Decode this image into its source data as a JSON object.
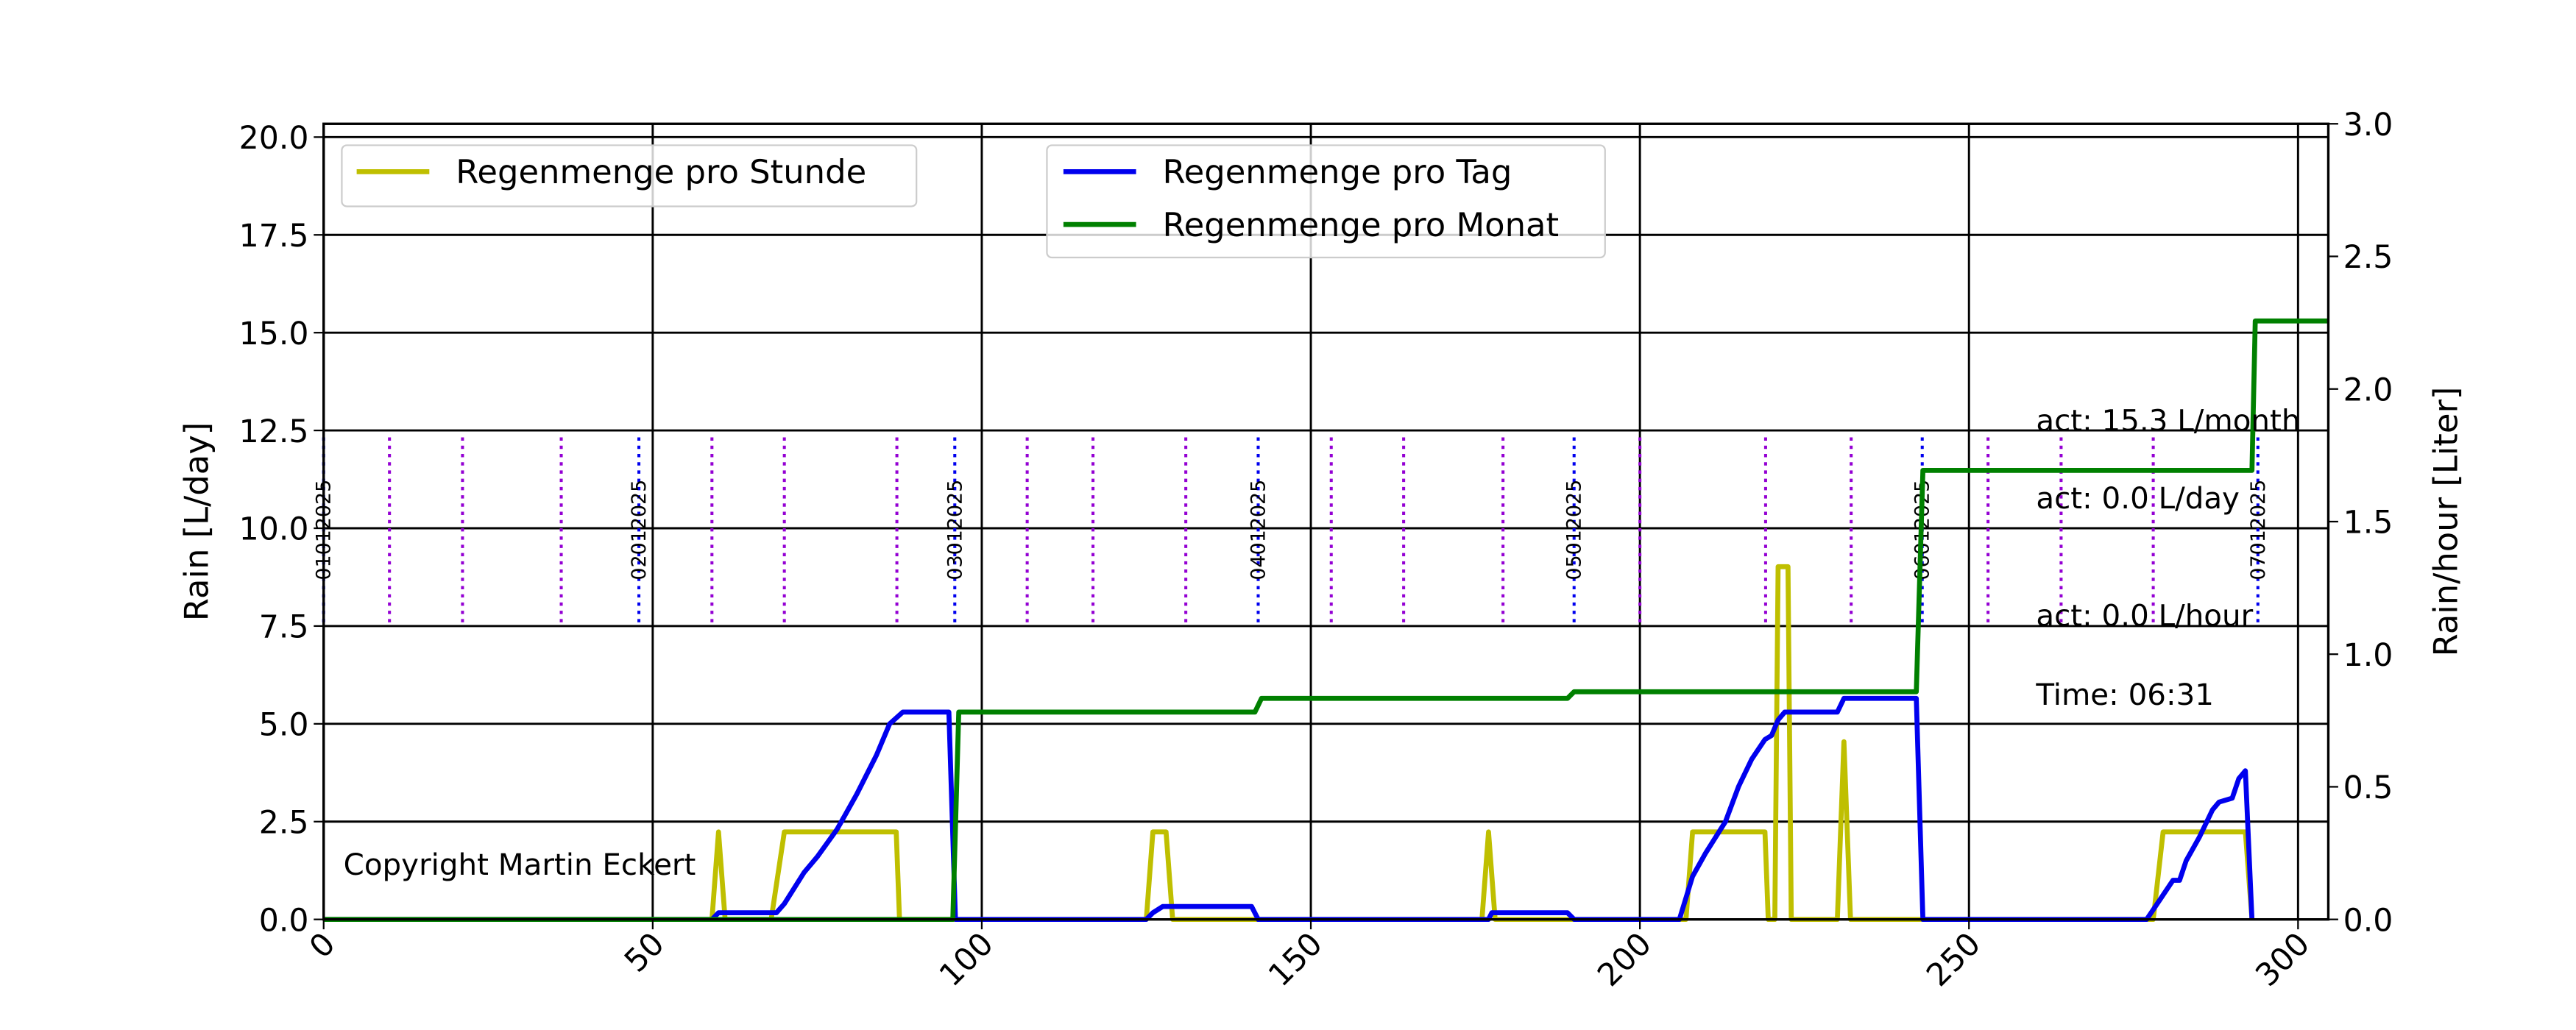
{
  "chart_data": {
    "type": "line",
    "y_label": "Rain [L/day]",
    "y2_label": "Rain/hour [Liter]",
    "xlim": [
      0,
      304.6
    ],
    "xticks": [
      0,
      50,
      100,
      150,
      200,
      250,
      300
    ],
    "ylim": [
      0,
      20.34
    ],
    "yticks": [
      {
        "value": 0,
        "label": "0.0"
      },
      2.5,
      {
        "value": 5,
        "label": "5.0"
      },
      7.5,
      {
        "value": 10,
        "label": "10.0"
      },
      12.5,
      {
        "value": 15,
        "label": "15.0"
      },
      17.5,
      {
        "value": 20,
        "label": "20.0"
      }
    ],
    "y2lim": [
      0,
      3
    ],
    "y2ticks": [
      {
        "value": 0,
        "label": "0.0"
      },
      0.5,
      {
        "value": 1,
        "label": "1.0"
      },
      1.5,
      {
        "value": 2,
        "label": "2.0"
      },
      2.5,
      {
        "value": 3,
        "label": "3.0"
      }
    ],
    "grid": true,
    "series": [
      {
        "name": "Regenmenge pro Stunde",
        "color": "#bfbf00",
        "axis": "y2",
        "x": [
          0,
          59,
          60,
          61,
          68,
          70,
          87,
          87.5,
          125,
          126,
          128,
          129,
          176,
          177,
          178,
          207,
          208,
          219,
          219.5,
          220.5,
          221,
          222.5,
          223,
          230,
          231,
          232,
          278,
          279.5,
          292,
          293
        ],
        "values": [
          0,
          0,
          0.33,
          0,
          0,
          0.33,
          0.33,
          0,
          0,
          0.33,
          0.33,
          0,
          0,
          0.33,
          0,
          0,
          0.33,
          0.33,
          0,
          0,
          1.33,
          1.33,
          0,
          0,
          0.67,
          0,
          0,
          0.33,
          0.33,
          0
        ]
      },
      {
        "name": "Regenmenge pro Tag",
        "color": "#0000ee",
        "x": [
          0,
          59,
          60,
          68.8,
          70,
          73,
          75,
          78,
          81,
          84,
          86,
          88,
          95,
          96,
          125,
          126,
          127.5,
          141,
          142,
          177,
          177.5,
          189,
          190,
          206,
          208,
          210,
          213,
          215,
          217,
          219,
          220,
          221,
          222,
          230,
          231,
          242,
          243,
          277,
          279,
          281,
          282,
          283,
          285,
          287,
          288,
          290,
          291,
          292,
          293
        ],
        "values": [
          0,
          0,
          0.17,
          0.17,
          0.4,
          1.2,
          1.6,
          2.3,
          3.2,
          4.2,
          5.0,
          5.3,
          5.3,
          0,
          0,
          0.17,
          0.33,
          0.33,
          0,
          0,
          0.17,
          0.17,
          0,
          0,
          1.1,
          1.7,
          2.5,
          3.4,
          4.1,
          4.6,
          4.7,
          5.1,
          5.3,
          5.3,
          5.65,
          5.65,
          0,
          0,
          0.5,
          1.0,
          1.0,
          1.5,
          2.1,
          2.8,
          3.0,
          3.1,
          3.6,
          3.8,
          0
        ]
      },
      {
        "name": "Regenmenge pro Monat",
        "color": "#008000",
        "x": [
          0,
          95.6,
          96.5,
          141.5,
          142.5,
          189,
          190,
          242,
          243,
          293,
          293.5,
          304.6
        ],
        "values": [
          0,
          0,
          5.3,
          5.3,
          5.65,
          5.65,
          5.82,
          5.82,
          11.48,
          11.48,
          15.3,
          15.3
        ]
      }
    ],
    "day_markers": {
      "color": "#0000ee",
      "x": [
        0,
        47.9,
        95.9,
        142,
        190,
        242.9,
        293.9
      ],
      "labels": [
        "01012025",
        "02012025",
        "03012025",
        "04012025",
        "05012025",
        "06012025",
        "07012025"
      ]
    },
    "hour_markers": {
      "color": "#9400d3",
      "x": [
        10,
        21.1,
        36.1,
        59,
        70,
        87.1,
        106.9,
        116.9,
        131,
        153.1,
        164.1,
        179.2,
        200,
        219.1,
        232.1,
        252.9,
        264,
        278
      ]
    },
    "annotations": [
      "act: 15.3 L/month",
      "act: 0.0 L/day",
      "act: 0.0 L/hour",
      "Time: 06:31",
      "Copyright Martin Eckert"
    ]
  }
}
